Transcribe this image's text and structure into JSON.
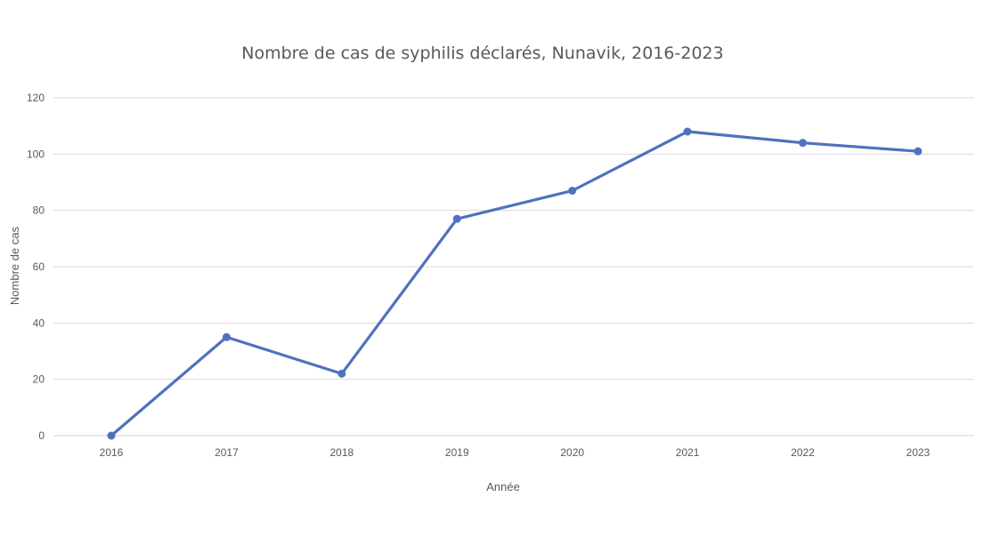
{
  "chart_data": {
    "type": "line",
    "title": "Nombre de cas de syphilis déclarés, Nunavik, 2016-2023",
    "xlabel": "Année",
    "ylabel": "Nombre de cas",
    "categories": [
      "2016",
      "2017",
      "2018",
      "2019",
      "2020",
      "2021",
      "2022",
      "2023"
    ],
    "series": [
      {
        "values": [
          0,
          35,
          22,
          77,
          87,
          108,
          104,
          101
        ],
        "color": "#4f72be"
      }
    ],
    "ylim": [
      0,
      120
    ],
    "yticks": [
      0,
      20,
      40,
      60,
      80,
      100,
      120
    ],
    "grid": true,
    "legend": "none"
  }
}
